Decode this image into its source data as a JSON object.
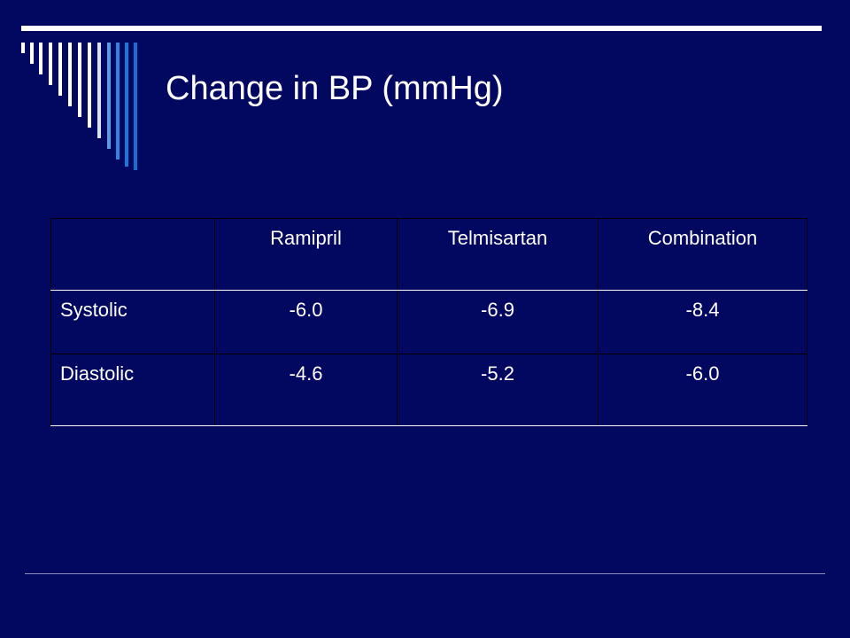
{
  "slide": {
    "title": "Change in BP (mmHg)"
  },
  "table": {
    "columns": [
      "",
      "Ramipril",
      "Telmisartan",
      "Combination"
    ],
    "rows": [
      {
        "label": "Systolic",
        "values": [
          "-6.0",
          "-6.9",
          "-8.4"
        ]
      },
      {
        "label": "Diastolic",
        "values": [
          "-4.6",
          "-5.2",
          "-6.0"
        ]
      }
    ]
  },
  "colors": {
    "background": "#020760",
    "text": "#ffffff",
    "stripe_white": "#ffffff",
    "stripe_blue": "#1a7ad8"
  }
}
